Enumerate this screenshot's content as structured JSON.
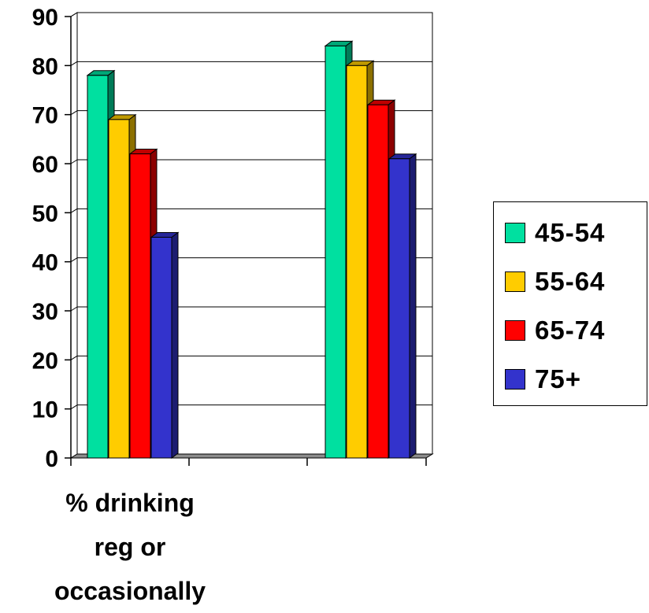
{
  "chart_data": {
    "type": "bar",
    "categories": [
      "% drinking reg or occasionally",
      ""
    ],
    "category_label_lines": [
      [
        "% drinking",
        "reg or",
        "occasionally"
      ],
      []
    ],
    "series": [
      {
        "name": "45-54",
        "color": "#00e0a0",
        "values": [
          78,
          84
        ]
      },
      {
        "name": "55-64",
        "color": "#ffcc00",
        "values": [
          69,
          80
        ]
      },
      {
        "name": "65-74",
        "color": "#ff0000",
        "values": [
          62,
          72
        ]
      },
      {
        "name": "75+",
        "color": "#3333cc",
        "values": [
          45,
          61
        ]
      }
    ],
    "ylim": [
      0,
      90
    ],
    "yticks": [
      "0",
      "10",
      "20",
      "30",
      "40",
      "50",
      "60",
      "70",
      "80",
      "90"
    ],
    "grid": true,
    "legend_position": "right",
    "title": "",
    "xlabel": "",
    "ylabel": ""
  }
}
